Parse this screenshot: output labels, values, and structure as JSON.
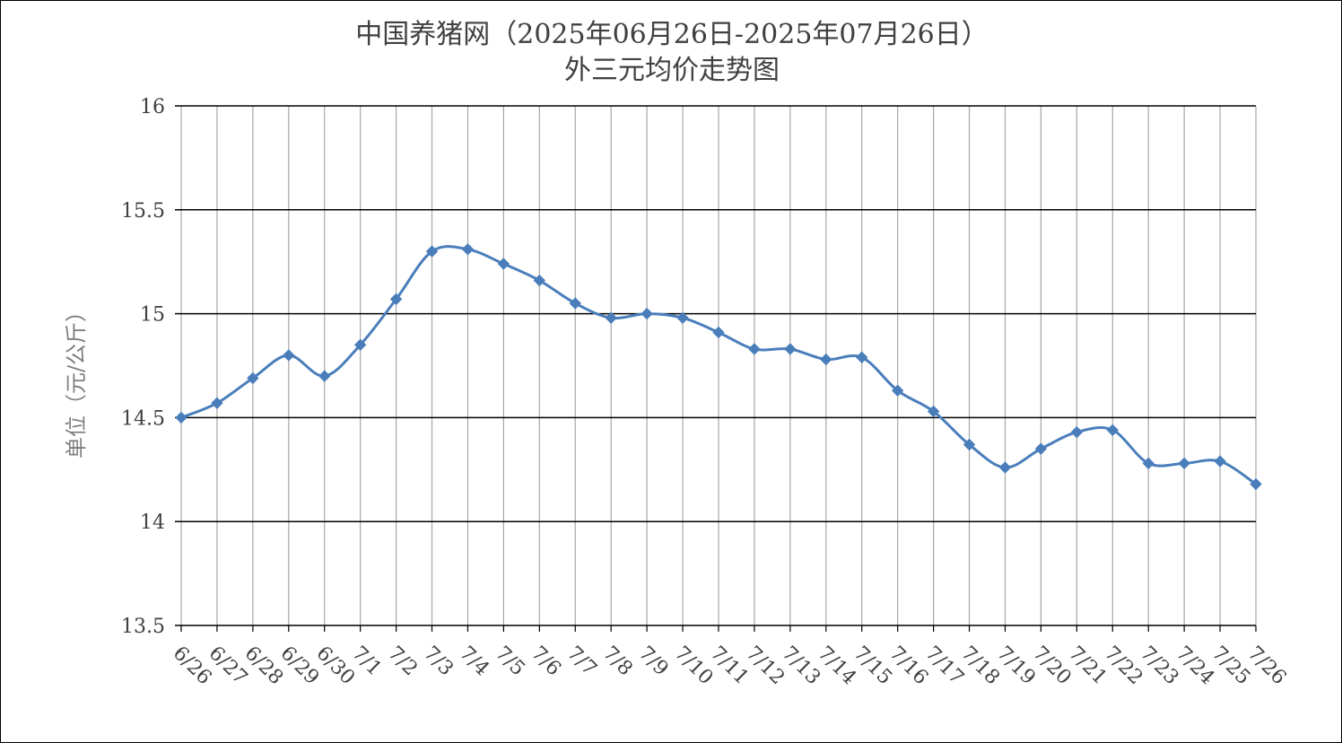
{
  "chart_data": {
    "type": "line",
    "title": "中国养猪网（2025年06月26日-2025年07月26日）",
    "subtitle": "外三元均价走势图",
    "xlabel": "",
    "ylabel": "单位（元/公斤）",
    "ylim": [
      13.5,
      16
    ],
    "yticks": [
      "13.5",
      "14",
      "14.5",
      "15",
      "15.5",
      "16"
    ],
    "grid": true,
    "legend": "none",
    "line_color": "#4a7ebb",
    "categories": [
      "6/26",
      "6/27",
      "6/28",
      "6/29",
      "6/30",
      "7/1",
      "7/2",
      "7/3",
      "7/4",
      "7/5",
      "7/6",
      "7/7",
      "7/8",
      "7/9",
      "7/10",
      "7/11",
      "7/12",
      "7/13",
      "7/14",
      "7/15",
      "7/16",
      "7/17",
      "7/18",
      "7/19",
      "7/20",
      "7/21",
      "7/22",
      "7/23",
      "7/24",
      "7/25",
      "7/26"
    ],
    "series": [
      {
        "values": [
          14.5,
          14.57,
          14.69,
          14.8,
          14.7,
          14.85,
          15.07,
          15.3,
          15.31,
          15.24,
          15.16,
          15.05,
          14.98,
          15.0,
          14.98,
          14.91,
          14.83,
          14.83,
          14.78,
          14.79,
          14.63,
          14.53,
          14.37,
          14.26,
          14.35,
          14.43,
          14.44,
          14.28,
          14.28,
          14.29,
          14.18
        ]
      }
    ]
  }
}
